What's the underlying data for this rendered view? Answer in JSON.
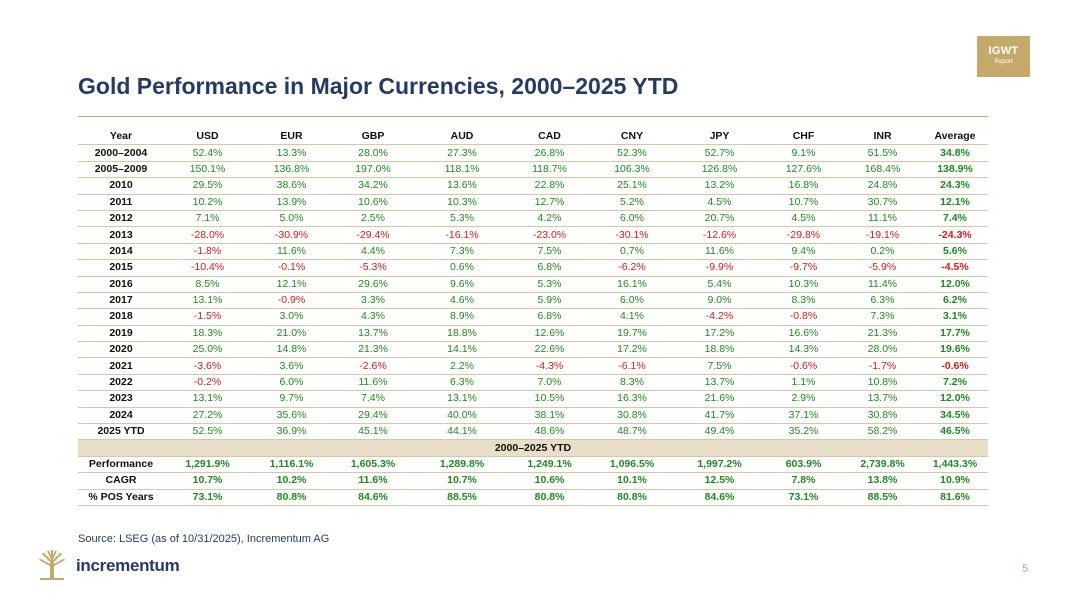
{
  "badge": {
    "line1": "IGWT",
    "line2": "Report"
  },
  "title": "Gold Performance in Major Currencies, 2000–2025 YTD",
  "columns": [
    "Year",
    "USD",
    "EUR",
    "GBP",
    "AUD",
    "CAD",
    "CNY",
    "JPY",
    "CHF",
    "INR",
    "Average"
  ],
  "rows": [
    {
      "label": "2000–2004",
      "values": [
        "52.4%",
        "13.3%",
        "28.0%",
        "27.3%",
        "26.8%",
        "52.3%",
        "52.7%",
        "9.1%",
        "51.5%",
        "34.8%"
      ]
    },
    {
      "label": "2005–2009",
      "values": [
        "150.1%",
        "136.8%",
        "197.0%",
        "118.1%",
        "118.7%",
        "106.3%",
        "126.8%",
        "127.6%",
        "168.4%",
        "138.9%"
      ]
    },
    {
      "label": "2010",
      "values": [
        "29.5%",
        "38.6%",
        "34.2%",
        "13.6%",
        "22.8%",
        "25.1%",
        "13.2%",
        "16.8%",
        "24.8%",
        "24.3%"
      ]
    },
    {
      "label": "2011",
      "values": [
        "10.2%",
        "13.9%",
        "10.6%",
        "10.3%",
        "12.7%",
        "5.2%",
        "4.5%",
        "10.7%",
        "30.7%",
        "12.1%"
      ]
    },
    {
      "label": "2012",
      "values": [
        "7.1%",
        "5.0%",
        "2.5%",
        "5.3%",
        "4.2%",
        "6.0%",
        "20.7%",
        "4.5%",
        "11.1%",
        "7.4%"
      ]
    },
    {
      "label": "2013",
      "values": [
        "-28.0%",
        "-30.9%",
        "-29.4%",
        "-16.1%",
        "-23.0%",
        "-30.1%",
        "-12.6%",
        "-29.8%",
        "-19.1%",
        "-24.3%"
      ]
    },
    {
      "label": "2014",
      "values": [
        "-1.8%",
        "11.6%",
        "4.4%",
        "7.3%",
        "7.5%",
        "0.7%",
        "11.6%",
        "9.4%",
        "0.2%",
        "5.6%"
      ]
    },
    {
      "label": "2015",
      "values": [
        "-10.4%",
        "-0.1%",
        "-5.3%",
        "0.6%",
        "6.8%",
        "-6.2%",
        "-9.9%",
        "-9.7%",
        "-5.9%",
        "-4.5%"
      ]
    },
    {
      "label": "2016",
      "values": [
        "8.5%",
        "12.1%",
        "29.6%",
        "9.6%",
        "5.3%",
        "16.1%",
        "5.4%",
        "10.3%",
        "11.4%",
        "12.0%"
      ]
    },
    {
      "label": "2017",
      "values": [
        "13.1%",
        "-0.9%",
        "3.3%",
        "4.6%",
        "5.9%",
        "6.0%",
        "9.0%",
        "8.3%",
        "6.3%",
        "6.2%"
      ]
    },
    {
      "label": "2018",
      "values": [
        "-1.5%",
        "3.0%",
        "4.3%",
        "8.9%",
        "6.8%",
        "4.1%",
        "-4.2%",
        "-0.8%",
        "7.3%",
        "3.1%"
      ]
    },
    {
      "label": "2019",
      "values": [
        "18.3%",
        "21.0%",
        "13.7%",
        "18.8%",
        "12.6%",
        "19.7%",
        "17.2%",
        "16.6%",
        "21.3%",
        "17.7%"
      ]
    },
    {
      "label": "2020",
      "values": [
        "25.0%",
        "14.8%",
        "21.3%",
        "14.1%",
        "22.6%",
        "17.2%",
        "18.8%",
        "14.3%",
        "28.0%",
        "19.6%"
      ]
    },
    {
      "label": "2021",
      "values": [
        "-3.6%",
        "3.6%",
        "-2.6%",
        "2.2%",
        "-4.3%",
        "-6.1%",
        "7.5%",
        "-0.6%",
        "-1.7%",
        "-0.6%"
      ]
    },
    {
      "label": "2022",
      "values": [
        "-0.2%",
        "6.0%",
        "11.6%",
        "6.3%",
        "7.0%",
        "8.3%",
        "13.7%",
        "1.1%",
        "10.8%",
        "7.2%"
      ]
    },
    {
      "label": "2023",
      "values": [
        "13.1%",
        "9.7%",
        "7.4%",
        "13.1%",
        "10.5%",
        "16.3%",
        "21.6%",
        "2.9%",
        "13.7%",
        "12.0%"
      ]
    },
    {
      "label": "2024",
      "values": [
        "27.2%",
        "35.6%",
        "29.4%",
        "40.0%",
        "38.1%",
        "30.8%",
        "41.7%",
        "37.1%",
        "30.8%",
        "34.5%"
      ]
    },
    {
      "label": "2025 YTD",
      "values": [
        "52.5%",
        "36.9%",
        "45.1%",
        "44.1%",
        "48.6%",
        "48.7%",
        "49.4%",
        "35.2%",
        "58.2%",
        "46.5%"
      ]
    }
  ],
  "section_label": "2000–2025 YTD",
  "summary_rows": [
    {
      "label": "Performance",
      "values": [
        "1,291.9%",
        "1,116.1%",
        "1,605.3%",
        "1,289.8%",
        "1,249.1%",
        "1,096.5%",
        "1,997.2%",
        "603.9%",
        "2,739.8%",
        "1,443.3%"
      ]
    },
    {
      "label": "CAGR",
      "values": [
        "10.7%",
        "10.2%",
        "11.6%",
        "10.7%",
        "10.6%",
        "10.1%",
        "12.5%",
        "7.8%",
        "13.8%",
        "10.9%"
      ]
    },
    {
      "label": "% POS Years",
      "values": [
        "73.1%",
        "80.8%",
        "84.6%",
        "88.5%",
        "80.8%",
        "80.8%",
        "84.6%",
        "73.1%",
        "88.5%",
        "81.6%"
      ]
    }
  ],
  "source": "Source: LSEG (as of 10/31/2025), Incrementum AG",
  "brand": "incrementum",
  "page_number": "5",
  "colors": {
    "accent": "#c4a96a",
    "navy": "#263a66",
    "positive": "#1f8a1f",
    "negative": "#d01c1c",
    "section_bg": "#e9dfc9"
  }
}
